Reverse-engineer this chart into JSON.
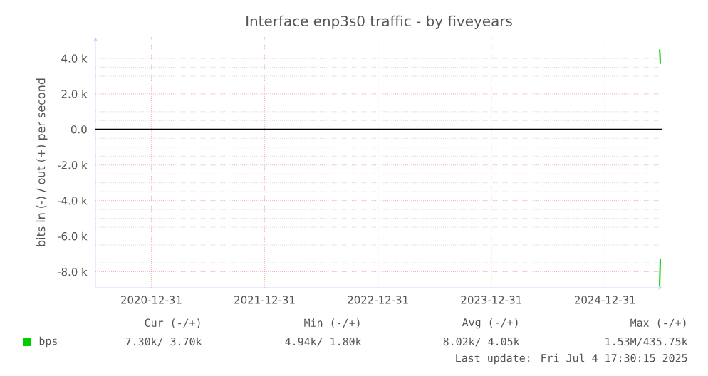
{
  "chart_data": {
    "type": "line",
    "title": "Interface enp3s0 traffic - by fiveyears",
    "ylabel": "bits in (-) / out (+) per second",
    "xlim": [
      "2020-07-04",
      "2025-07-04"
    ],
    "xticks": [
      "2020-12-31",
      "2021-12-31",
      "2022-12-31",
      "2023-12-31",
      "2024-12-31"
    ],
    "ylim": [
      -8900,
      5200
    ],
    "yticks": [
      {
        "value": -8000,
        "label": "-8.0 k"
      },
      {
        "value": -6000,
        "label": "-6.0 k"
      },
      {
        "value": -4000,
        "label": "-4.0 k"
      },
      {
        "value": -2000,
        "label": "-2.0 k"
      },
      {
        "value": 0,
        "label": "0.0"
      },
      {
        "value": 2000,
        "label": "2.0 k"
      },
      {
        "value": 4000,
        "label": "4.0 k"
      }
    ],
    "grid": true,
    "legend": "bottom",
    "marker": "none",
    "line_style": "solid",
    "series": [
      {
        "color": "#00cc00",
        "x": [
          "2025-06-24",
          "2025-06-25",
          "2025-06-27"
        ],
        "values": [
          -8800,
          -8800,
          -7300
        ]
      },
      {
        "name": "bps",
        "color": "#00cc00",
        "x": [
          "2025-06-25",
          "2025-06-26",
          "2025-06-27"
        ],
        "values": [
          4500,
          4200,
          3700
        ]
      }
    ],
    "ref_lines": [
      {
        "axis": "y",
        "value": 0,
        "color": "#000000"
      }
    ],
    "annotations": [
      "Cur (-/+)",
      "Min (-/+)",
      "Avg (-/+)",
      "Max (-/+)",
      "7.30k/ 3.70k",
      "4.94k/ 1.80k",
      "8.02k/ 4.05k",
      "1.53M/435.75k",
      "Last update: Fri Jul 4 17:30:15 2025"
    ]
  }
}
